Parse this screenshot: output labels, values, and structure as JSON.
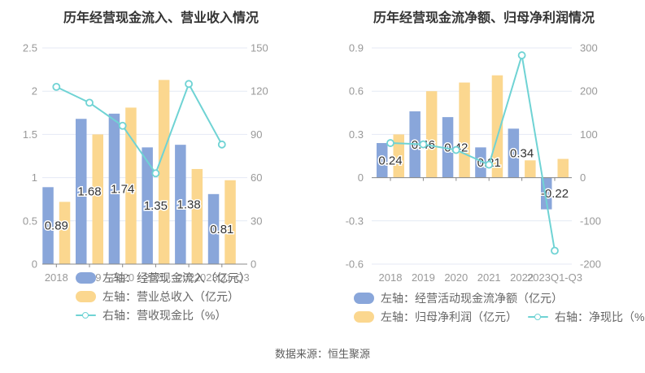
{
  "source": "数据来源：恒生聚源",
  "colors": {
    "bar_blue": "#89a6da",
    "bar_orange": "#fbd78f",
    "line_teal": "#6fd3d4",
    "grid": "#e4eaf4",
    "axis_line": "#888888",
    "axis_text": "#999999",
    "value_label": "#333333",
    "legend_text": "#666666",
    "title_text": "#333333"
  },
  "chart_data": [
    {
      "type": "bar+line",
      "title": "历年经营现金流入、营业收入情况",
      "categories": [
        "2018",
        "2019",
        "2020",
        "2021",
        "2022",
        "2023Q1-Q3"
      ],
      "series": [
        {
          "name": "左轴：经营现金流入（亿元）",
          "type": "bar",
          "axis": "left",
          "color": "#89a6da",
          "values": [
            0.89,
            1.68,
            1.74,
            1.35,
            1.38,
            0.81
          ],
          "value_labels": [
            "0.89",
            "1.68",
            "1.74",
            "1.35",
            "1.38",
            "0.81"
          ]
        },
        {
          "name": "左轴：营业总收入（亿元）",
          "type": "bar",
          "axis": "left",
          "color": "#fbd78f",
          "values": [
            0.72,
            1.5,
            1.81,
            2.13,
            1.1,
            0.97
          ]
        },
        {
          "name": "右轴：营收现金比（%）",
          "type": "line",
          "axis": "right",
          "color": "#6fd3d4",
          "values": [
            123,
            112,
            96,
            63,
            125,
            83
          ]
        }
      ],
      "left_axis": {
        "min": 0,
        "max": 2.5,
        "ticks": [
          "2.5",
          "2",
          "1.5",
          "1",
          "0.5",
          "0"
        ]
      },
      "right_axis": {
        "min": 0,
        "max": 150,
        "ticks": [
          "150",
          "120",
          "90",
          "60",
          "30",
          "0"
        ]
      },
      "legend_rows": [
        [
          0
        ],
        [
          1
        ],
        [
          2
        ]
      ],
      "legend_position": "bottom",
      "grid": true
    },
    {
      "type": "bar+line",
      "title": "历年经营现金流净额、归母净利润情况",
      "categories": [
        "2018",
        "2019",
        "2020",
        "2021",
        "2022",
        "2023Q1-Q3"
      ],
      "series": [
        {
          "name": "左轴：经营活动现金流净额（亿元）",
          "type": "bar",
          "axis": "left",
          "color": "#89a6da",
          "values": [
            0.24,
            0.46,
            0.42,
            0.21,
            0.34,
            -0.22
          ],
          "value_labels": [
            "0.24",
            "0.46",
            "0.42",
            "0.21",
            "0.34",
            "-0.22"
          ]
        },
        {
          "name": "左轴：归母净利润（亿元）",
          "type": "bar",
          "axis": "left",
          "color": "#fbd78f",
          "values": [
            0.3,
            0.6,
            0.66,
            0.71,
            0.12,
            0.13
          ]
        },
        {
          "name": "右轴：净现比（%）",
          "type": "line",
          "axis": "right",
          "color": "#6fd3d4",
          "values": [
            80,
            77,
            64,
            30,
            283,
            -169
          ]
        }
      ],
      "left_axis": {
        "min": -0.6,
        "max": 0.9,
        "ticks": [
          "0.9",
          "0.6",
          "0.3",
          "0",
          "-0.3",
          "-0.6"
        ]
      },
      "right_axis": {
        "min": -200,
        "max": 300,
        "ticks": [
          "300",
          "200",
          "100",
          "0",
          "-100",
          "-200"
        ]
      },
      "legend_rows": [
        [
          0
        ],
        [
          1,
          2
        ]
      ],
      "legend_position": "bottom",
      "grid": true
    }
  ]
}
